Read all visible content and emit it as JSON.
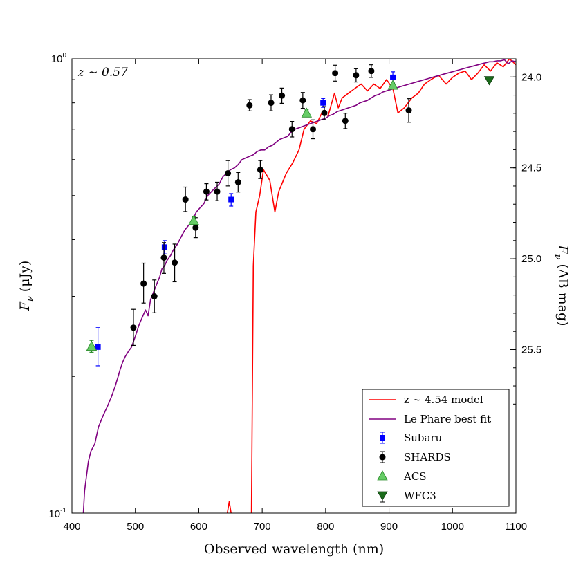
{
  "chart_data": {
    "type": "scatter",
    "annotation": "z ∼ 0.57",
    "xlabel": "Observed wavelength (nm)",
    "ylabel_left": "F",
    "ylabel_left_sub": "ν",
    "ylabel_left_unit": " (μJy)",
    "ylabel_right": "F",
    "ylabel_right_sub": "ν",
    "ylabel_right_unit": " (AB mag)",
    "xlim": [
      400,
      1100
    ],
    "ylim": [
      0.1,
      1.0
    ],
    "yscale": "log",
    "x_ticks": [
      "400",
      "500",
      "600",
      "700",
      "800",
      "900",
      "1000",
      "1100"
    ],
    "y_tick_labels": {
      "top": "0",
      "top_base": "10",
      "bottom": "-1",
      "bottom_base": "10"
    },
    "right_ticks": [
      "24.0",
      "24.5",
      "25.0",
      "25.5"
    ],
    "right_tick_values": [
      24.0,
      24.5,
      25.0,
      25.5
    ],
    "legend": {
      "location": "lower-right",
      "entries": [
        "z ∼ 4.54 model",
        "Le Phare best fit",
        "Subaru",
        "SHARDS",
        "ACS",
        "WFC3"
      ]
    },
    "series": [
      {
        "name": "z ∼ 4.54 model",
        "kind": "line",
        "color": "#ff0000",
        "segments": [
          [
            [
              645,
              0.1
            ],
            [
              648,
              0.106
            ],
            [
              652,
              0.098
            ]
          ],
          [
            [
              683,
              0.1
            ],
            [
              686,
              0.35
            ],
            [
              690,
              0.46
            ],
            [
              696,
              0.5
            ],
            [
              702,
              0.57
            ],
            [
              712,
              0.54
            ],
            [
              720,
              0.46
            ],
            [
              726,
              0.51
            ],
            [
              738,
              0.56
            ],
            [
              748,
              0.59
            ],
            [
              758,
              0.63
            ],
            [
              766,
              0.7
            ],
            [
              776,
              0.73
            ],
            [
              786,
              0.72
            ],
            [
              794,
              0.76
            ],
            [
              804,
              0.75
            ],
            [
              814,
              0.84
            ],
            [
              820,
              0.78
            ],
            [
              826,
              0.82
            ],
            [
              836,
              0.84
            ],
            [
              846,
              0.86
            ],
            [
              856,
              0.88
            ],
            [
              866,
              0.85
            ],
            [
              876,
              0.88
            ],
            [
              886,
              0.86
            ],
            [
              896,
              0.9
            ],
            [
              906,
              0.86
            ],
            [
              914,
              0.76
            ],
            [
              924,
              0.78
            ],
            [
              936,
              0.82
            ],
            [
              946,
              0.84
            ],
            [
              956,
              0.88
            ],
            [
              966,
              0.9
            ],
            [
              978,
              0.92
            ],
            [
              990,
              0.88
            ],
            [
              1000,
              0.91
            ],
            [
              1010,
              0.93
            ],
            [
              1020,
              0.94
            ],
            [
              1030,
              0.9
            ],
            [
              1040,
              0.93
            ],
            [
              1050,
              0.97
            ],
            [
              1060,
              0.94
            ],
            [
              1070,
              0.98
            ],
            [
              1080,
              0.96
            ],
            [
              1090,
              1.0
            ],
            [
              1100,
              0.97
            ]
          ]
        ]
      },
      {
        "name": "Le Phare best fit",
        "kind": "line",
        "color": "#800080",
        "points": [
          [
            418,
            0.1
          ],
          [
            420,
            0.112
          ],
          [
            422,
            0.118
          ],
          [
            426,
            0.13
          ],
          [
            430,
            0.137
          ],
          [
            436,
            0.142
          ],
          [
            442,
            0.155
          ],
          [
            446,
            0.16
          ],
          [
            450,
            0.165
          ],
          [
            456,
            0.172
          ],
          [
            462,
            0.18
          ],
          [
            468,
            0.19
          ],
          [
            472,
            0.198
          ],
          [
            476,
            0.207
          ],
          [
            480,
            0.215
          ],
          [
            484,
            0.221
          ],
          [
            490,
            0.228
          ],
          [
            494,
            0.232
          ],
          [
            500,
            0.245
          ],
          [
            506,
            0.26
          ],
          [
            510,
            0.268
          ],
          [
            516,
            0.28
          ],
          [
            520,
            0.272
          ],
          [
            524,
            0.295
          ],
          [
            528,
            0.305
          ],
          [
            534,
            0.32
          ],
          [
            538,
            0.33
          ],
          [
            542,
            0.345
          ],
          [
            546,
            0.35
          ],
          [
            550,
            0.36
          ],
          [
            556,
            0.37
          ],
          [
            560,
            0.38
          ],
          [
            566,
            0.39
          ],
          [
            572,
            0.405
          ],
          [
            578,
            0.42
          ],
          [
            584,
            0.43
          ],
          [
            590,
            0.44
          ],
          [
            596,
            0.46
          ],
          [
            602,
            0.47
          ],
          [
            608,
            0.48
          ],
          [
            614,
            0.5
          ],
          [
            620,
            0.51
          ],
          [
            626,
            0.52
          ],
          [
            632,
            0.53
          ],
          [
            638,
            0.55
          ],
          [
            644,
            0.56
          ],
          [
            650,
            0.57
          ],
          [
            656,
            0.575
          ],
          [
            662,
            0.585
          ],
          [
            668,
            0.6
          ],
          [
            674,
            0.605
          ],
          [
            680,
            0.61
          ],
          [
            686,
            0.615
          ],
          [
            692,
            0.625
          ],
          [
            698,
            0.63
          ],
          [
            704,
            0.63
          ],
          [
            710,
            0.64
          ],
          [
            716,
            0.645
          ],
          [
            722,
            0.655
          ],
          [
            728,
            0.665
          ],
          [
            734,
            0.67
          ],
          [
            740,
            0.675
          ],
          [
            746,
            0.69
          ],
          [
            752,
            0.7
          ],
          [
            758,
            0.705
          ],
          [
            764,
            0.71
          ],
          [
            770,
            0.715
          ],
          [
            776,
            0.72
          ],
          [
            782,
            0.725
          ],
          [
            788,
            0.73
          ],
          [
            794,
            0.735
          ],
          [
            800,
            0.74
          ],
          [
            806,
            0.75
          ],
          [
            812,
            0.755
          ],
          [
            818,
            0.765
          ],
          [
            824,
            0.77
          ],
          [
            830,
            0.775
          ],
          [
            836,
            0.78
          ],
          [
            842,
            0.785
          ],
          [
            848,
            0.79
          ],
          [
            854,
            0.8
          ],
          [
            860,
            0.805
          ],
          [
            866,
            0.81
          ],
          [
            872,
            0.82
          ],
          [
            878,
            0.83
          ],
          [
            884,
            0.835
          ],
          [
            890,
            0.845
          ],
          [
            896,
            0.85
          ],
          [
            902,
            0.855
          ],
          [
            908,
            0.86
          ],
          [
            914,
            0.865
          ],
          [
            920,
            0.87
          ],
          [
            926,
            0.875
          ],
          [
            932,
            0.88
          ],
          [
            938,
            0.885
          ],
          [
            944,
            0.89
          ],
          [
            950,
            0.895
          ],
          [
            956,
            0.9
          ],
          [
            962,
            0.905
          ],
          [
            968,
            0.91
          ],
          [
            974,
            0.915
          ],
          [
            980,
            0.92
          ],
          [
            986,
            0.925
          ],
          [
            992,
            0.93
          ],
          [
            998,
            0.935
          ],
          [
            1004,
            0.94
          ],
          [
            1010,
            0.945
          ],
          [
            1016,
            0.95
          ],
          [
            1022,
            0.955
          ],
          [
            1028,
            0.96
          ],
          [
            1034,
            0.965
          ],
          [
            1040,
            0.97
          ],
          [
            1046,
            0.975
          ],
          [
            1052,
            0.98
          ],
          [
            1058,
            0.985
          ],
          [
            1064,
            0.985
          ],
          [
            1070,
            0.99
          ],
          [
            1076,
            0.99
          ],
          [
            1082,
            0.995
          ],
          [
            1088,
            0.975
          ],
          [
            1094,
            0.99
          ],
          [
            1100,
            0.985
          ]
        ]
      },
      {
        "name": "Subaru",
        "kind": "errorbar",
        "marker": "square",
        "color": "#0000ff",
        "points": [
          {
            "x": 441,
            "y": 0.232,
            "lo": 0.211,
            "hi": 0.256
          },
          {
            "x": 546,
            "y": 0.385,
            "lo": 0.372,
            "hi": 0.398
          },
          {
            "x": 651,
            "y": 0.49,
            "lo": 0.474,
            "hi": 0.505
          },
          {
            "x": 796,
            "y": 0.8,
            "lo": 0.782,
            "hi": 0.818
          },
          {
            "x": 906,
            "y": 0.91,
            "lo": 0.882,
            "hi": 0.936
          }
        ]
      },
      {
        "name": "SHARDS",
        "kind": "errorbar",
        "marker": "circle",
        "color": "#000000",
        "points": [
          {
            "x": 497,
            "y": 0.256,
            "lo": 0.234,
            "hi": 0.281
          },
          {
            "x": 513,
            "y": 0.32,
            "lo": 0.29,
            "hi": 0.355
          },
          {
            "x": 530,
            "y": 0.3,
            "lo": 0.276,
            "hi": 0.326
          },
          {
            "x": 545,
            "y": 0.365,
            "lo": 0.337,
            "hi": 0.394
          },
          {
            "x": 562,
            "y": 0.356,
            "lo": 0.323,
            "hi": 0.391
          },
          {
            "x": 579,
            "y": 0.49,
            "lo": 0.461,
            "hi": 0.522
          },
          {
            "x": 595,
            "y": 0.425,
            "lo": 0.404,
            "hi": 0.447
          },
          {
            "x": 612,
            "y": 0.51,
            "lo": 0.489,
            "hi": 0.531
          },
          {
            "x": 629,
            "y": 0.51,
            "lo": 0.487,
            "hi": 0.535
          },
          {
            "x": 646,
            "y": 0.56,
            "lo": 0.525,
            "hi": 0.597
          },
          {
            "x": 662,
            "y": 0.535,
            "lo": 0.509,
            "hi": 0.562
          },
          {
            "x": 680,
            "y": 0.79,
            "lo": 0.768,
            "hi": 0.813
          },
          {
            "x": 697,
            "y": 0.57,
            "lo": 0.545,
            "hi": 0.597
          },
          {
            "x": 714,
            "y": 0.8,
            "lo": 0.768,
            "hi": 0.833
          },
          {
            "x": 731,
            "y": 0.83,
            "lo": 0.798,
            "hi": 0.862
          },
          {
            "x": 747,
            "y": 0.7,
            "lo": 0.673,
            "hi": 0.728
          },
          {
            "x": 764,
            "y": 0.81,
            "lo": 0.778,
            "hi": 0.843
          },
          {
            "x": 780,
            "y": 0.7,
            "lo": 0.667,
            "hi": 0.734
          },
          {
            "x": 798,
            "y": 0.76,
            "lo": 0.735,
            "hi": 0.785
          },
          {
            "x": 815,
            "y": 0.93,
            "lo": 0.893,
            "hi": 0.968
          },
          {
            "x": 831,
            "y": 0.73,
            "lo": 0.702,
            "hi": 0.759
          },
          {
            "x": 848,
            "y": 0.92,
            "lo": 0.889,
            "hi": 0.951
          },
          {
            "x": 872,
            "y": 0.94,
            "lo": 0.91,
            "hi": 0.97
          },
          {
            "x": 931,
            "y": 0.77,
            "lo": 0.725,
            "hi": 0.817
          }
        ]
      },
      {
        "name": "ACS",
        "kind": "errorbar",
        "marker": "triangle-up",
        "color": "#66cc66",
        "points": [
          {
            "x": 431,
            "y": 0.233,
            "lo": 0.226,
            "hi": 0.24
          },
          {
            "x": 592,
            "y": 0.441,
            "lo": 0.434,
            "hi": 0.449
          },
          {
            "x": 770,
            "y": 0.76,
            "lo": 0.748,
            "hi": 0.772
          },
          {
            "x": 906,
            "y": 0.875,
            "lo": 0.866,
            "hi": 0.885
          }
        ]
      },
      {
        "name": "WFC3",
        "kind": "errorbar",
        "marker": "triangle-down",
        "color": "#1a6b1a",
        "points": [
          {
            "x": 1058,
            "y": 0.895,
            "lo": 0.89,
            "hi": 0.9
          }
        ]
      }
    ]
  }
}
